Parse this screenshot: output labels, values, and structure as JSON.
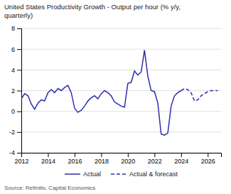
{
  "chart_data": {
    "type": "line",
    "title": "United States Productivity Growth - Output per hour (% y/y,\nquarterly)",
    "annotations": [
      "Source: Refinitiv, Capital Economics"
    ],
    "xlim": [
      2012,
      2027
    ],
    "ylim": [
      -4,
      8
    ],
    "xticks": [
      2012,
      2014,
      2016,
      2018,
      2020,
      2022,
      2024,
      2026
    ],
    "yticks": [
      -4,
      -2,
      0,
      2,
      4,
      6,
      8
    ],
    "grid": true,
    "legend": "bottom",
    "series": [
      {
        "name": "Actual",
        "color": "#2E2EAA",
        "line_style": "solid",
        "x": [
          2012.0,
          2012.25,
          2012.5,
          2012.75,
          2013.0,
          2013.25,
          2013.5,
          2013.75,
          2014.0,
          2014.25,
          2014.5,
          2014.75,
          2015.0,
          2015.25,
          2015.5,
          2015.75,
          2016.0,
          2016.25,
          2016.5,
          2016.75,
          2017.0,
          2017.25,
          2017.5,
          2017.75,
          2018.0,
          2018.25,
          2018.5,
          2018.75,
          2019.0,
          2019.25,
          2019.5,
          2019.75,
          2020.0,
          2020.25,
          2020.5,
          2020.75,
          2021.0,
          2021.25,
          2021.5,
          2021.75,
          2022.0,
          2022.25,
          2022.5,
          2022.75,
          2023.0,
          2023.25,
          2023.5,
          2023.75,
          2024.0
        ],
        "values": [
          1.2,
          1.7,
          1.5,
          0.7,
          0.2,
          0.8,
          1.1,
          1.0,
          1.8,
          2.1,
          1.8,
          2.2,
          2.0,
          2.3,
          2.5,
          1.8,
          0.3,
          -0.1,
          0.1,
          0.5,
          1.0,
          1.3,
          1.5,
          1.2,
          1.7,
          2.0,
          1.8,
          1.5,
          0.9,
          0.7,
          0.5,
          0.4,
          2.7,
          2.8,
          3.9,
          3.5,
          3.8,
          5.9,
          3.4,
          2.0,
          1.9,
          0.8,
          -2.2,
          -2.3,
          -2.1,
          0.5,
          1.5,
          1.8,
          2.0
        ]
      },
      {
        "name": "Actual & forecast",
        "color": "#2E2EAA",
        "line_style": "dashed",
        "x": [
          2024.0,
          2024.25,
          2024.5,
          2024.75,
          2025.0,
          2025.25,
          2025.5,
          2025.75,
          2026.0,
          2026.25,
          2026.5,
          2026.75
        ],
        "values": [
          2.0,
          2.2,
          2.1,
          1.8,
          1.0,
          1.1,
          1.5,
          1.7,
          1.9,
          2.0,
          2.0,
          2.0
        ]
      }
    ]
  }
}
